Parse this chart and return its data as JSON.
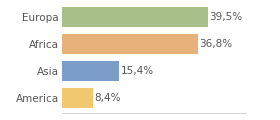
{
  "categories": [
    "America",
    "Asia",
    "Africa",
    "Europa"
  ],
  "values": [
    8.4,
    15.4,
    36.8,
    39.5
  ],
  "labels": [
    "8,4%",
    "15,4%",
    "36,8%",
    "39,5%"
  ],
  "colors": [
    "#f0c870",
    "#7b9dc7",
    "#e8b07a",
    "#a8bf8a"
  ],
  "xlim": [
    0,
    50
  ],
  "bar_height": 0.75,
  "background_color": "#ffffff",
  "text_color": "#555555",
  "label_fontsize": 7.5,
  "ytick_fontsize": 7.5,
  "fig_width": 2.8,
  "fig_height": 1.2,
  "dpi": 100
}
